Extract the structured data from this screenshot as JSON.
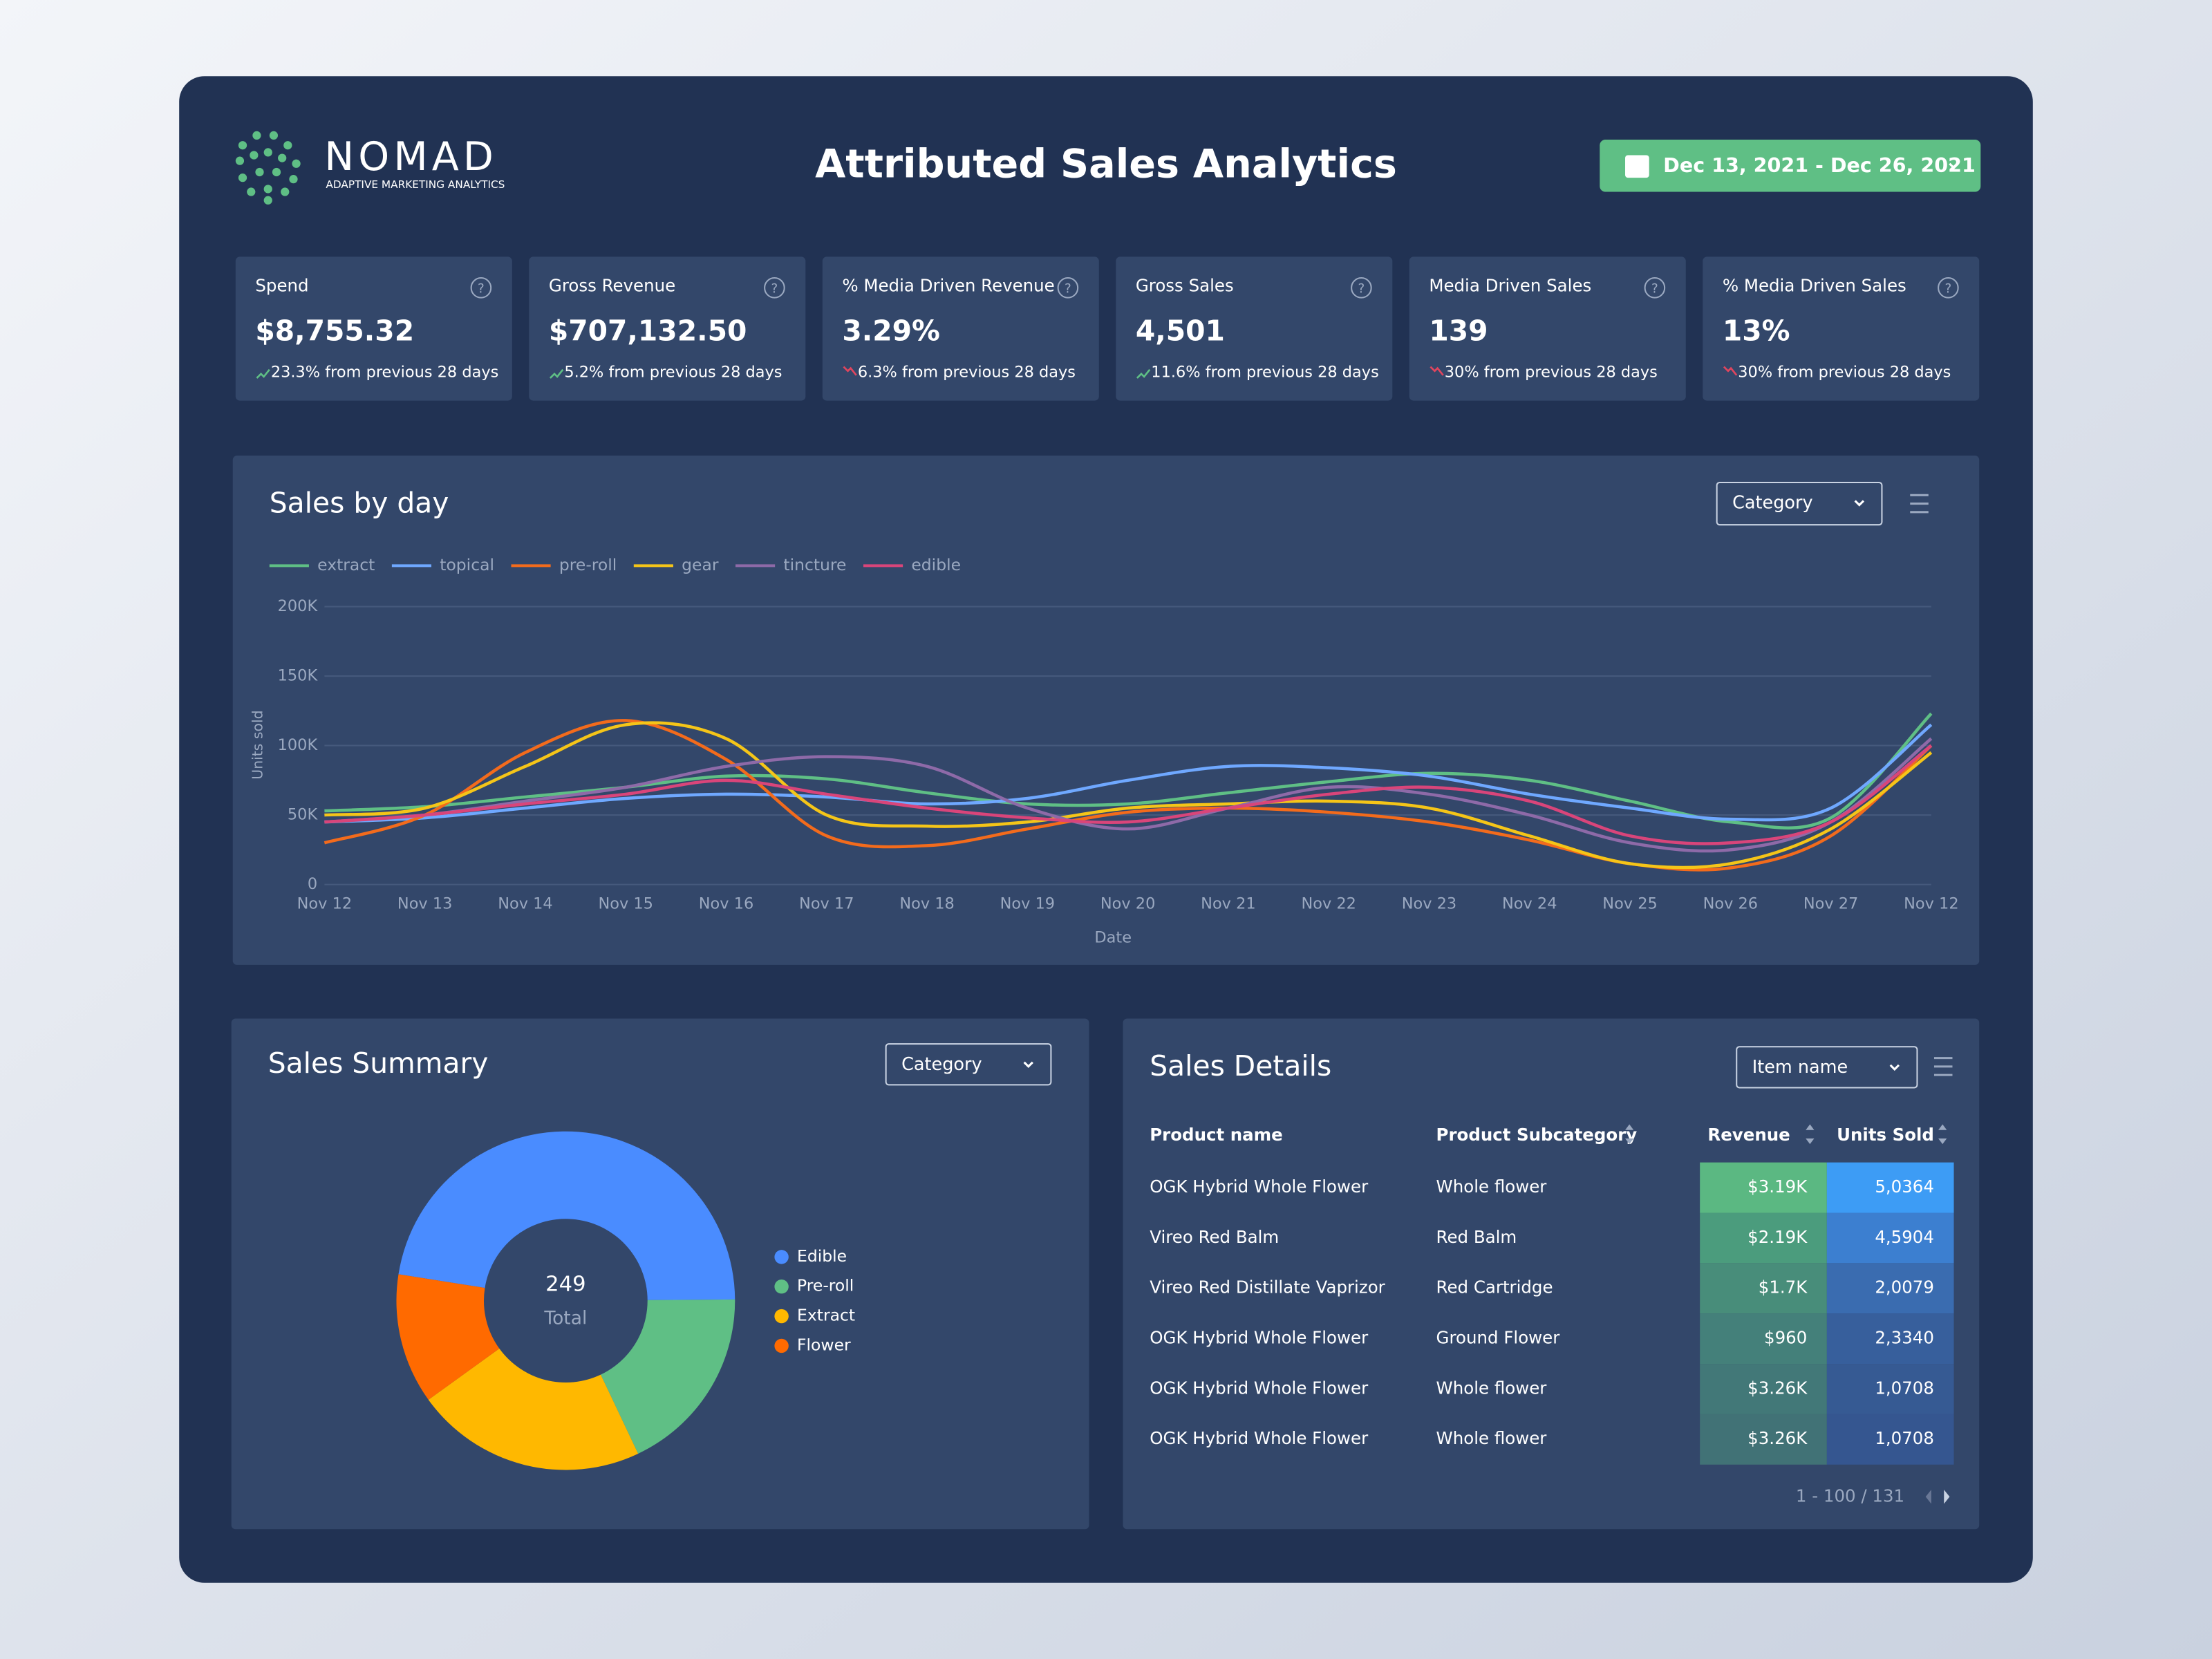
{
  "header": {
    "logo": "NOMAD",
    "tagline": "ADAPTIVE MARKETING ANALYTICS",
    "title": "Attributed Sales Analytics",
    "date_range": "Dec 13, 2021 - Dec 26, 2021"
  },
  "kpis": [
    {
      "label": "Spend",
      "value": "$8,755.32",
      "change": "23.3% from previous 28 days",
      "trend": "up"
    },
    {
      "label": "Gross Revenue",
      "value": "$707,132.50",
      "change": "5.2% from previous 28 days",
      "trend": "up"
    },
    {
      "label": "% Media Driven Revenue",
      "value": "3.29%",
      "change": "6.3% from previous 28 days",
      "trend": "down"
    },
    {
      "label": "Gross Sales",
      "value": "4,501",
      "change": "11.6% from previous 28 days",
      "trend": "up"
    },
    {
      "label": "Media Driven Sales",
      "value": "139",
      "change": "30% from previous 28 days",
      "trend": "down"
    },
    {
      "label": "% Media Driven Sales",
      "value": "13%",
      "change": "30% from previous 28 days",
      "trend": "down"
    }
  ],
  "chart_data": [
    {
      "type": "line",
      "title": "Sales by day",
      "control": "Category",
      "x_label": "Date",
      "y_label": "Units sold",
      "categories": [
        "Nov 12",
        "Nov 13",
        "Nov 14",
        "Nov 15",
        "Nov 16",
        "Nov 17",
        "Nov 18",
        "Nov 19",
        "Nov 20",
        "Nov 21",
        "Nov 22",
        "Nov 23",
        "Nov 24",
        "Nov 25",
        "Nov 26",
        "Nov 27",
        "Nov 12"
      ],
      "series": [
        {
          "name": "extract",
          "color": "#5fbf85",
          "values": [
            53000,
            56000,
            63000,
            70000,
            78000,
            76000,
            66000,
            58000,
            58000,
            66000,
            74000,
            80000,
            75000,
            60000,
            45000,
            48000,
            123000
          ]
        },
        {
          "name": "topical",
          "color": "#6fa8ff",
          "values": [
            45000,
            48000,
            55000,
            62000,
            65000,
            63000,
            58000,
            62000,
            75000,
            85000,
            84000,
            78000,
            65000,
            55000,
            47000,
            55000,
            115000
          ]
        },
        {
          "name": "pre-roll",
          "color": "#f36b1c",
          "values": [
            30000,
            50000,
            95000,
            118000,
            90000,
            35000,
            28000,
            40000,
            52000,
            55000,
            52000,
            45000,
            32000,
            15000,
            12000,
            35000,
            100000
          ]
        },
        {
          "name": "gear",
          "color": "#f5c518",
          "values": [
            50000,
            55000,
            85000,
            115000,
            105000,
            50000,
            42000,
            45000,
            55000,
            58000,
            60000,
            55000,
            35000,
            15000,
            15000,
            40000,
            95000
          ]
        },
        {
          "name": "tincture",
          "color": "#8e6aa8",
          "values": [
            45000,
            50000,
            60000,
            70000,
            85000,
            92000,
            85000,
            55000,
            40000,
            55000,
            70000,
            65000,
            50000,
            30000,
            25000,
            45000,
            105000
          ]
        },
        {
          "name": "edible",
          "color": "#d9457a",
          "values": [
            45000,
            50000,
            58000,
            65000,
            75000,
            65000,
            55000,
            48000,
            45000,
            55000,
            65000,
            70000,
            60000,
            35000,
            30000,
            45000,
            100000
          ]
        }
      ],
      "ylim": [
        0,
        200000
      ],
      "yticks": [
        0,
        {
          "value": 50000,
          "label": "50K"
        },
        {
          "value": 100000,
          "label": "100K"
        },
        {
          "value": 150000,
          "label": "150K"
        },
        {
          "value": 200000,
          "label": "200K"
        }
      ],
      "grid": true
    },
    {
      "type": "pie",
      "title": "Sales Summary",
      "control": "Category",
      "categories": [
        "Edible",
        "Pre-roll",
        "Extract",
        "Flower"
      ],
      "values": [
        118,
        45,
        55,
        31
      ],
      "colors": [
        "#4a8cff",
        "#5fbf85",
        "#ffb800",
        "#ff6a00"
      ],
      "total": 249,
      "total_label": "Total"
    }
  ],
  "table": {
    "title": "Sales Details",
    "control": "Item name",
    "columns": [
      "Product name",
      "Product Subcategory",
      "Revenue",
      "Units Sold"
    ],
    "rows": [
      [
        "OGK Hybrid Whole Flower",
        "Whole flower",
        "$3.19K",
        "5,0364"
      ],
      [
        "Vireo Red Balm",
        "Red Balm",
        "$2.19K",
        "4,5904"
      ],
      [
        "Vireo Red Distillate Vaprizor",
        "Red Cartridge",
        "$1.7K",
        "2,0079"
      ],
      [
        "OGK Hybrid Whole Flower",
        "Ground Flower",
        "$960",
        "2,3340"
      ],
      [
        "OGK Hybrid Whole Flower",
        "Whole flower",
        "$3.26K",
        "1,0708"
      ],
      [
        "OGK Hybrid Whole Flower",
        "Whole flower",
        "$3.26K",
        "1,0708"
      ]
    ],
    "pagination": "1 - 100 / 131"
  }
}
